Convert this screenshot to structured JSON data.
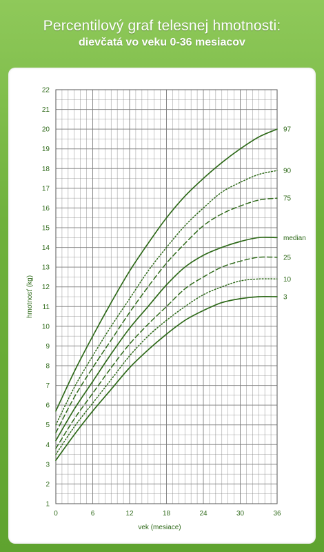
{
  "header": {
    "title": "Percentilový graf telesnej hmotnosti:",
    "subtitle": "dievčatá vo veku 0-36 mesiacov"
  },
  "colors": {
    "frame_green": "#6fb13c",
    "line_green": "#2f6a1a",
    "grid": "#7d7d7d"
  },
  "chart_data": {
    "type": "line",
    "xlabel": "vek (mesiace)",
    "ylabel": "hmotnosť (kg)",
    "xlim": [
      0,
      36
    ],
    "ylim": [
      1,
      22
    ],
    "xticks": [
      0,
      6,
      12,
      18,
      24,
      30,
      36
    ],
    "yticks": [
      1,
      2,
      3,
      4,
      5,
      6,
      7,
      8,
      9,
      10,
      11,
      12,
      13,
      14,
      15,
      16,
      17,
      18,
      19,
      20,
      21,
      22
    ],
    "grid": true,
    "x": [
      0,
      3,
      6,
      9,
      12,
      15,
      18,
      21,
      24,
      27,
      30,
      33,
      36
    ],
    "series": [
      {
        "name": "97",
        "style": "solid",
        "values": [
          5.7,
          7.7,
          9.5,
          11.2,
          12.8,
          14.2,
          15.5,
          16.6,
          17.5,
          18.3,
          19.0,
          19.6,
          20.0
        ]
      },
      {
        "name": "90",
        "style": "dotted",
        "values": [
          5.0,
          6.9,
          8.5,
          10.0,
          11.4,
          12.8,
          14.0,
          15.1,
          16.0,
          16.8,
          17.3,
          17.7,
          17.9
        ]
      },
      {
        "name": "75",
        "style": "dashed",
        "values": [
          4.6,
          6.4,
          7.9,
          9.3,
          10.7,
          12.0,
          13.2,
          14.2,
          15.1,
          15.7,
          16.1,
          16.4,
          16.5
        ]
      },
      {
        "name": "median",
        "style": "solid",
        "values": [
          4.2,
          5.8,
          7.2,
          8.6,
          9.9,
          11.0,
          12.1,
          13.0,
          13.6,
          14.0,
          14.3,
          14.5,
          14.5
        ]
      },
      {
        "name": "25",
        "style": "dashed",
        "values": [
          3.8,
          5.3,
          6.6,
          7.9,
          9.1,
          10.1,
          11.0,
          11.9,
          12.5,
          13.0,
          13.3,
          13.5,
          13.5
        ]
      },
      {
        "name": "10",
        "style": "dotted",
        "values": [
          3.5,
          4.9,
          6.1,
          7.3,
          8.5,
          9.5,
          10.3,
          11.0,
          11.6,
          12.0,
          12.3,
          12.4,
          12.4
        ]
      },
      {
        "name": "3",
        "style": "solid",
        "values": [
          3.2,
          4.5,
          5.7,
          6.8,
          7.9,
          8.8,
          9.6,
          10.3,
          10.8,
          11.2,
          11.4,
          11.5,
          11.5
        ]
      }
    ]
  }
}
